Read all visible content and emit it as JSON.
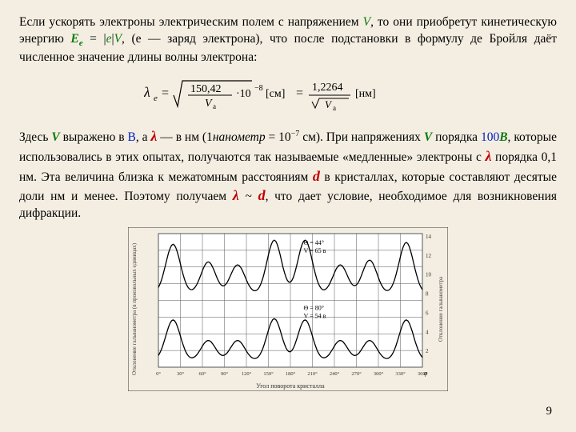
{
  "para1": {
    "t1": "Если ускорять электроны электрическим полем с напряжением ",
    "V": "V",
    "t2": ", то они приобретут кинетическую энергию ",
    "E": "E",
    "esub": "e",
    "t3": " = |",
    "e_var": "e",
    "t4": "|",
    "V2": "V",
    "t5": ", (e — заряд электрона), что после подстановки в формулу де Бройля даёт численное значение длины волны электрона:"
  },
  "formula": {
    "lam": "λ",
    "lam_sub": "e",
    "root_num": "150,42",
    "root_den": "V",
    "root_den_sub": "a",
    "pow": "·10",
    "pow_sup": "−8",
    "unit1": "[см]",
    "eq2_num": "1,2264",
    "eq2_den": "V",
    "eq2_den_sub": "a",
    "unit2": "[нм]"
  },
  "para2": {
    "t1": "Здесь ",
    "V": "V",
    "t2": " выражено в ",
    "Vunit": "В",
    "t3": ", а ",
    "lam": "λ",
    "t4": " — в нм (1",
    "nano": "нанометр",
    "t5": " = 10",
    "sup": "−7",
    "t6": " см). При напряжениях ",
    "V2": "V",
    "t7": " порядка ",
    "hundred": "100",
    "Vunit2": "В",
    "t8": ", которые использовались в этих опытах, получаются так называемые «медленные» электроны с ",
    "lam2": "λ",
    "t9": " порядка 0,1 нм. Эта величина близка к межатомным расстояниям ",
    "d": "d",
    "t10": " в кристаллах, которые составляют десятые доли нм и менее. Поэтому получаем ",
    "lam3": "λ",
    "tilde": " ~ ",
    "d2": "d",
    "t11": ", что дает условие, необходимое для возник­новения дифракции."
  },
  "chart": {
    "top_curve": {
      "theta": "Θ = 44°",
      "volt": "V = 65 в"
    },
    "bot_curve": {
      "theta": "Θ = 80°",
      "volt": "V = 54 в"
    },
    "y_left_label": "Отклонение гальванометра (в произвольных единицах)",
    "y_right_label": "Отклонение гальванометра",
    "x_label": "Угол поворота кристалла",
    "x_ticks": [
      "0°",
      "30°",
      "60°",
      "90°",
      "120°",
      "150°",
      "180°",
      "210°",
      "240°",
      "270°",
      "300°",
      "330°",
      "360°"
    ],
    "y_right_ticks": [
      "14",
      "12",
      "10",
      "8",
      "6",
      "4",
      "2"
    ],
    "peaks_top_x": [
      20,
      68,
      108,
      158,
      200,
      248,
      288,
      338
    ],
    "peaks_top_y": [
      0.85,
      0.55,
      0.5,
      0.92,
      0.92,
      0.5,
      0.58,
      0.88
    ],
    "peaks_bot_x": [
      20,
      68,
      108,
      158,
      200,
      248,
      288,
      338
    ],
    "peaks_bot_y": [
      0.7,
      0.35,
      0.35,
      0.72,
      0.7,
      0.35,
      0.35,
      0.7
    ],
    "bg": "#ffffff",
    "grid": "#555555",
    "line": "#000000"
  },
  "page_number": "9"
}
